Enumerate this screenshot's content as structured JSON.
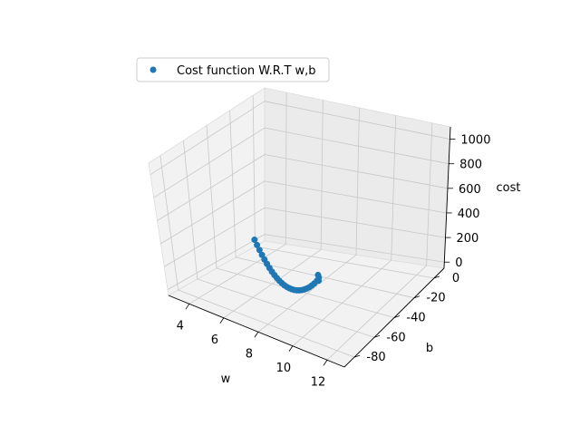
{
  "chart_data": {
    "type": "scatter",
    "projection": "3d",
    "legend": {
      "label": "Cost function W.R.T w,b",
      "placement": "upper-left"
    },
    "xlabel": "w",
    "ylabel": "b",
    "zlabel": "cost",
    "xlim": [
      2.8,
      13.0
    ],
    "ylim": [
      -90,
      10
    ],
    "zlim": [
      -50,
      1100
    ],
    "xticks": [
      4,
      6,
      8,
      10,
      12
    ],
    "yticks": [
      0,
      -20,
      -40,
      -60,
      -80
    ],
    "zticks": [
      0,
      200,
      400,
      600,
      800,
      1000
    ],
    "grid": true,
    "series_color": "#1f77b4",
    "series": [
      {
        "name": "Cost function W.R.T w,b",
        "points": [
          [
            5.0,
            -40,
            280
          ],
          [
            5.2,
            -41,
            255
          ],
          [
            5.4,
            -42,
            232
          ],
          [
            5.6,
            -43,
            210
          ],
          [
            5.8,
            -44,
            190
          ],
          [
            6.0,
            -45,
            172
          ],
          [
            6.2,
            -46,
            156
          ],
          [
            6.4,
            -47,
            143
          ],
          [
            6.6,
            -48,
            132
          ],
          [
            6.8,
            -49,
            124
          ],
          [
            7.0,
            -50,
            118
          ],
          [
            7.2,
            -51,
            115
          ],
          [
            7.4,
            -52,
            114
          ],
          [
            7.6,
            -53,
            116
          ],
          [
            7.8,
            -54,
            121
          ],
          [
            8.0,
            -55,
            128
          ],
          [
            8.2,
            -56,
            137
          ],
          [
            8.4,
            -57,
            149
          ],
          [
            8.6,
            -58,
            163
          ],
          [
            8.8,
            -59,
            180
          ],
          [
            9.0,
            -60,
            199
          ],
          [
            9.2,
            -61,
            221
          ],
          [
            9.4,
            -62,
            245
          ],
          [
            9.6,
            -63,
            272
          ],
          [
            9.8,
            -64,
            302
          ],
          [
            10.0,
            -65,
            335
          ],
          [
            10.0,
            -63,
            330
          ],
          [
            9.9,
            -61,
            340
          ],
          [
            9.8,
            -60,
            350
          ]
        ]
      }
    ]
  }
}
